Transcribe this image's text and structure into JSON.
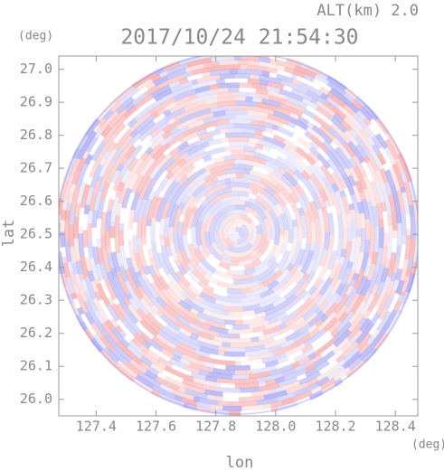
{
  "chart_data": {
    "type": "radar-ppi",
    "title": "2017/10/24 21:54:30",
    "subtitle": "ALT(km) 2.0",
    "x_label": "lon",
    "y_label": "lat",
    "x_unit": "(deg)",
    "y_unit": "(deg)",
    "xlim": [
      127.275,
      128.475
    ],
    "ylim": [
      25.95,
      27.04
    ],
    "xticks": [
      127.4,
      127.6,
      127.8,
      {
        "value": 128,
        "label": "128.0"
      },
      128.2,
      128.4
    ],
    "yticks": [
      {
        "value": 26,
        "label": "26.0"
      },
      26.1,
      26.2,
      26.3,
      26.4,
      26.5,
      26.6,
      26.7,
      26.8,
      26.9,
      {
        "value": 27,
        "label": "27.0"
      }
    ]
  }
}
